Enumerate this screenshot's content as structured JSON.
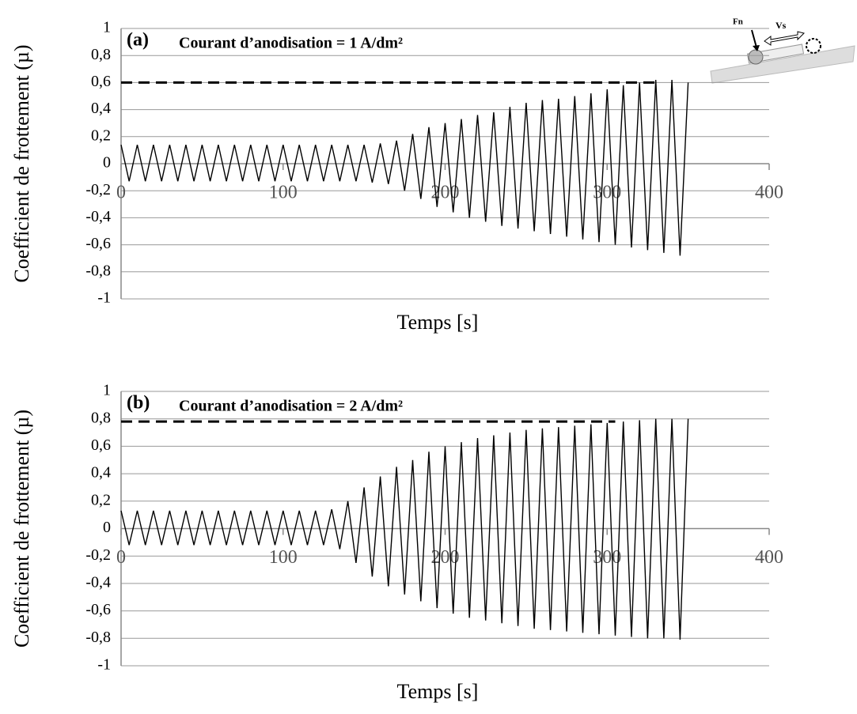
{
  "chart_data": [
    {
      "type": "line",
      "panel_label": "(a)",
      "annotation": "Courant d’anodisation = 1 A/dm²",
      "x_label": "Temps [s]",
      "y_label": "Coefficient de frottement (µ)",
      "color": "#000000",
      "grid": true,
      "xlim": [
        0,
        400
      ],
      "xticks": [
        0,
        100,
        200,
        300,
        400
      ],
      "ylim": [
        -1,
        1
      ],
      "yticks": [
        1,
        {
          "value": 0.8,
          "label": "0,8"
        },
        {
          "value": 0.6,
          "label": "0,6"
        },
        {
          "value": 0.4,
          "label": "0,4"
        },
        {
          "value": 0.2,
          "label": "0,2"
        },
        0,
        {
          "value": -0.2,
          "label": "-0,2"
        },
        {
          "value": -0.4,
          "label": "-0,4"
        },
        {
          "value": -0.6,
          "label": "-0,6"
        },
        {
          "value": -0.8,
          "label": "-0,8"
        },
        -1
      ],
      "reference_line": {
        "y": 0.6,
        "x": [
          0,
          330
        ]
      },
      "x": [
        0,
        5,
        10,
        15,
        20,
        25,
        30,
        35,
        40,
        45,
        50,
        55,
        60,
        65,
        70,
        75,
        80,
        85,
        90,
        95,
        100,
        105,
        110,
        115,
        120,
        125,
        130,
        135,
        140,
        145,
        150,
        155,
        160,
        165,
        170,
        175,
        180,
        185,
        190,
        195,
        200,
        205,
        210,
        215,
        220,
        225,
        230,
        235,
        240,
        245,
        250,
        255,
        260,
        265,
        270,
        275,
        280,
        285,
        290,
        295,
        300,
        305,
        310,
        315,
        320,
        325,
        330,
        335,
        340,
        345,
        350
      ],
      "values": [
        0.14,
        -0.13,
        0.14,
        -0.13,
        0.14,
        -0.13,
        0.14,
        -0.13,
        0.14,
        -0.13,
        0.14,
        -0.13,
        0.14,
        -0.13,
        0.14,
        -0.13,
        0.14,
        -0.13,
        0.14,
        -0.13,
        0.14,
        -0.13,
        0.14,
        -0.13,
        0.14,
        -0.13,
        0.14,
        -0.13,
        0.14,
        -0.13,
        0.14,
        -0.14,
        0.15,
        -0.15,
        0.17,
        -0.2,
        0.22,
        -0.26,
        0.27,
        -0.32,
        0.3,
        -0.36,
        0.33,
        -0.4,
        0.36,
        -0.43,
        0.38,
        -0.46,
        0.42,
        -0.48,
        0.45,
        -0.5,
        0.47,
        -0.52,
        0.48,
        -0.54,
        0.5,
        -0.56,
        0.52,
        -0.58,
        0.55,
        -0.6,
        0.58,
        -0.62,
        0.6,
        -0.64,
        0.62,
        -0.66,
        0.62,
        -0.68,
        0.6
      ]
    },
    {
      "type": "line",
      "panel_label": "(b)",
      "annotation": "Courant d’anodisation = 2 A/dm²",
      "x_label": "Temps [s]",
      "y_label": "Coefficient de frottement (µ)",
      "color": "#000000",
      "grid": true,
      "xlim": [
        0,
        400
      ],
      "xticks": [
        0,
        100,
        200,
        300,
        400
      ],
      "ylim": [
        -1,
        1
      ],
      "yticks": [
        1,
        {
          "value": 0.8,
          "label": "0,8"
        },
        {
          "value": 0.6,
          "label": "0,6"
        },
        {
          "value": 0.4,
          "label": "0,4"
        },
        {
          "value": 0.2,
          "label": "0,2"
        },
        0,
        {
          "value": -0.2,
          "label": "-0,2"
        },
        {
          "value": -0.4,
          "label": "-0,4"
        },
        {
          "value": -0.6,
          "label": "-0,6"
        },
        {
          "value": -0.8,
          "label": "-0,8"
        },
        -1
      ],
      "reference_line": {
        "y": 0.78,
        "x": [
          0,
          305
        ]
      },
      "x": [
        0,
        5,
        10,
        15,
        20,
        25,
        30,
        35,
        40,
        45,
        50,
        55,
        60,
        65,
        70,
        75,
        80,
        85,
        90,
        95,
        100,
        105,
        110,
        115,
        120,
        125,
        130,
        135,
        140,
        145,
        150,
        155,
        160,
        165,
        170,
        175,
        180,
        185,
        190,
        195,
        200,
        205,
        210,
        215,
        220,
        225,
        230,
        235,
        240,
        245,
        250,
        255,
        260,
        265,
        270,
        275,
        280,
        285,
        290,
        295,
        300,
        305,
        310,
        315,
        320,
        325,
        330,
        335,
        340,
        345,
        350
      ],
      "values": [
        0.13,
        -0.12,
        0.13,
        -0.12,
        0.13,
        -0.12,
        0.13,
        -0.12,
        0.13,
        -0.12,
        0.13,
        -0.12,
        0.13,
        -0.12,
        0.13,
        -0.12,
        0.13,
        -0.12,
        0.13,
        -0.12,
        0.13,
        -0.12,
        0.13,
        -0.12,
        0.13,
        -0.12,
        0.14,
        -0.15,
        0.2,
        -0.25,
        0.3,
        -0.35,
        0.38,
        -0.42,
        0.45,
        -0.48,
        0.5,
        -0.53,
        0.56,
        -0.58,
        0.6,
        -0.62,
        0.63,
        -0.65,
        0.66,
        -0.67,
        0.68,
        -0.69,
        0.7,
        -0.71,
        0.72,
        -0.73,
        0.73,
        -0.74,
        0.74,
        -0.75,
        0.75,
        -0.76,
        0.76,
        -0.77,
        0.77,
        -0.78,
        0.78,
        -0.79,
        0.79,
        -0.8,
        0.8,
        -0.8,
        0.8,
        -0.81,
        0.8
      ]
    }
  ],
  "inset": {
    "force_label": "Fn",
    "speed_label": "Vs"
  }
}
